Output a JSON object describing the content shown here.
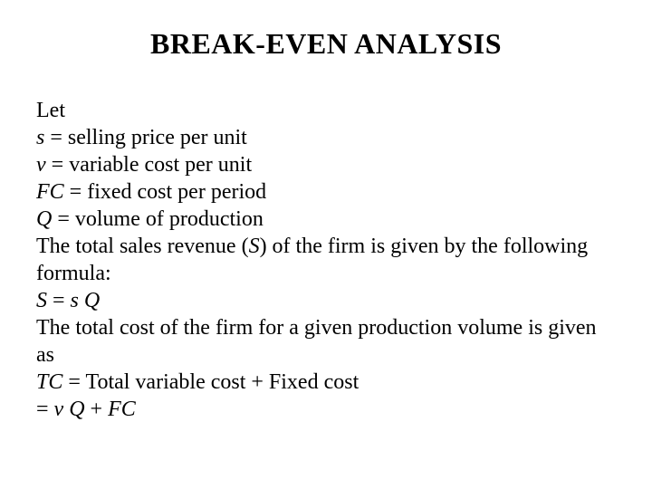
{
  "type": "document-slide",
  "background_color": "#ffffff",
  "text_color": "#000000",
  "font_family": "Times New Roman",
  "title": {
    "text": "BREAK-EVEN ANALYSIS",
    "fontsize": 32,
    "fontweight": "bold",
    "align": "center"
  },
  "body": {
    "fontsize": 24,
    "lines": {
      "l0": "Let",
      "l1a": "s",
      "l1b": " = selling price per unit",
      "l2a": "v",
      "l2b": " = variable cost per unit",
      "l3a": "FC",
      "l3b": " = fixed cost per period",
      "l4a": "Q",
      "l4b": " = volume of production",
      "l5a": "The total sales revenue (",
      "l5b": "S",
      "l5c": ") of the firm is given by the following formula:",
      "l6a": "S",
      "l6b": " = ",
      "l6c": "s",
      "l6d": "  ",
      "l6e": "Q",
      "l7": "The total cost of the firm for a given production volume is given as",
      "l8a": "TC",
      "l8b": " = Total variable cost + Fixed cost",
      "l9a": "= ",
      "l9b": "v",
      "l9c": "  ",
      "l9d": "Q",
      "l9e": " + ",
      "l9f": "FC"
    }
  }
}
